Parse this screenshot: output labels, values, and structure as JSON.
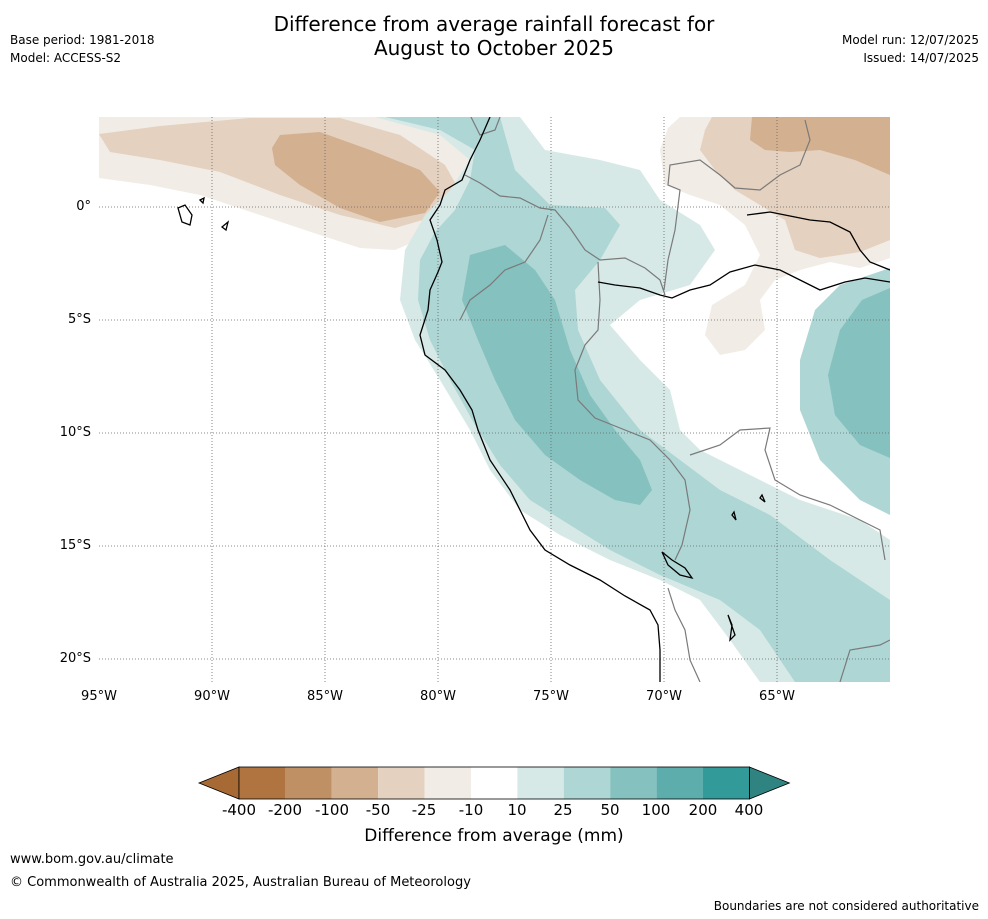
{
  "header": {
    "title_line1": "Difference from average rainfall forecast for",
    "title_line2": "August to October 2025",
    "base_period": "Base period: 1981-2018",
    "model": "Model: ACCESS-S2",
    "model_run": "Model run: 12/07/2025",
    "issued": "Issued: 14/07/2025"
  },
  "map": {
    "lat_labels": [
      "0°",
      "5°S",
      "10°S",
      "15°S",
      "20°S"
    ],
    "lon_labels": [
      "95°W",
      "90°W",
      "85°W",
      "80°W",
      "75°W",
      "70°W",
      "65°W"
    ],
    "colors": {
      "dry_extreme": "#a86a35",
      "dry_strong": "#c09065",
      "dry_moderate": "#d3b08f",
      "dry_light": "#e4d1bf",
      "dry_slight": "#f1ece6",
      "neutral": "#ffffff",
      "wet_slight": "#d6e9e7",
      "wet_light": "#add6d5",
      "wet_moderate": "#85c1bf",
      "wet_strong": "#5eadad",
      "wet_extreme": "#329a98",
      "border": "#7a7a7a",
      "coast": "#000000"
    }
  },
  "colorbar": {
    "labels": [
      "-400",
      "-200",
      "-100",
      "-50",
      "-25",
      "-10",
      "10",
      "25",
      "50",
      "100",
      "200",
      "400"
    ],
    "colors": [
      "#a86a35",
      "#af7440",
      "#c09065",
      "#d3b08f",
      "#e4d1bf",
      "#f1ece6",
      "#ffffff",
      "#d6e9e7",
      "#add6d5",
      "#85c1bf",
      "#5eadad",
      "#329a98",
      "#2f8482"
    ],
    "title": "Difference from average (mm)"
  },
  "footer": {
    "website": "www.bom.gov.au/climate",
    "copyright": "© Commonwealth of Australia 2025, Australian Bureau of Meteorology",
    "disclaimer": "Boundaries are not considered authoritative"
  }
}
